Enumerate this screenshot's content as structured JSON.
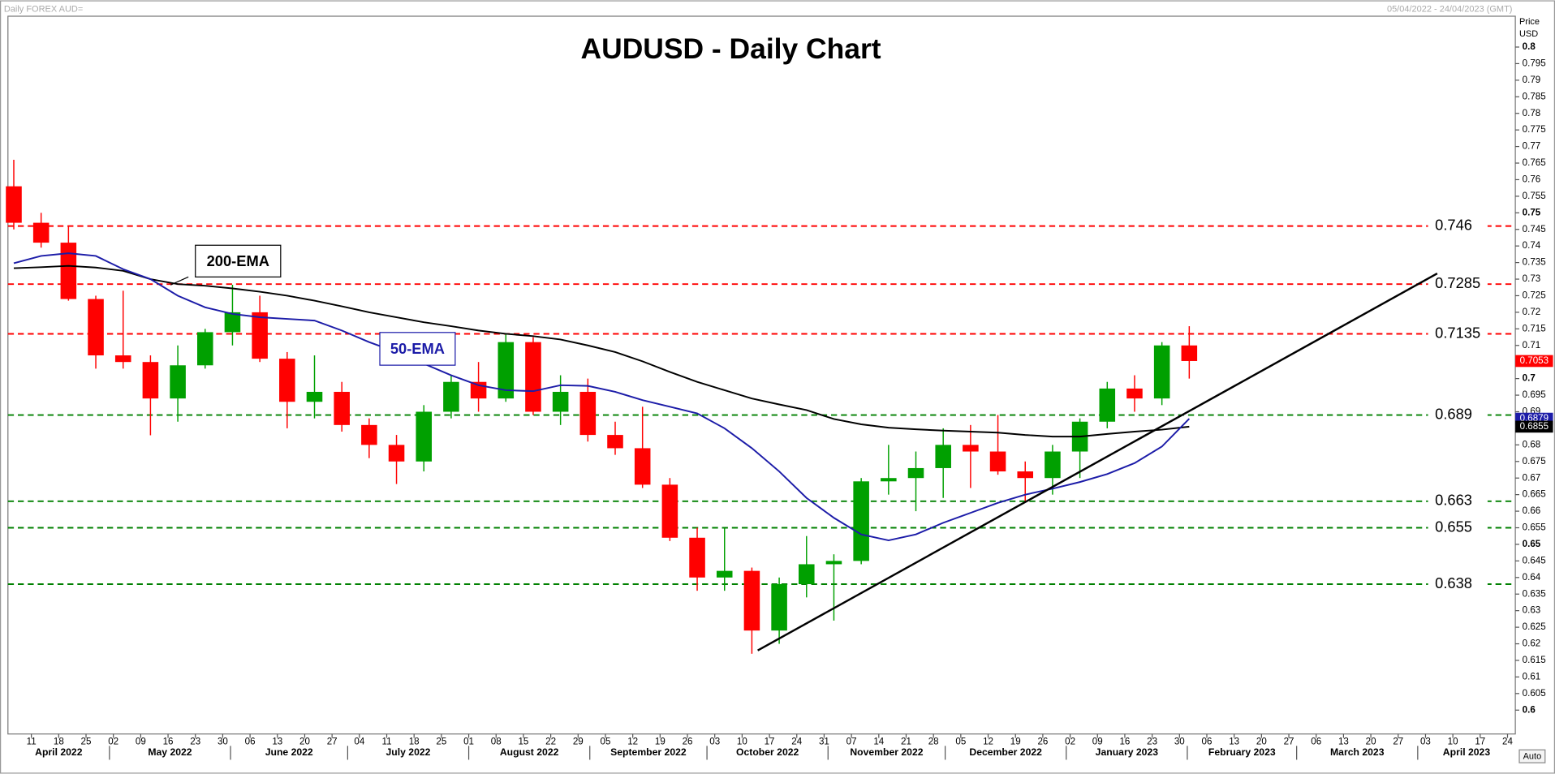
{
  "chart_data": {
    "type": "candlestick",
    "title": "AUDUSD - Daily Chart",
    "header_left": "Daily FOREX AUD=",
    "header_right": "05/04/2022 - 24/04/2023 (GMT)",
    "y_axis_label": [
      "Price",
      "USD"
    ],
    "button": "Auto",
    "up_color": "#00a000",
    "down_color": "#ff0000",
    "x": [
      "2022-04-04",
      "2022-04-11",
      "2022-04-18",
      "2022-04-25",
      "2022-05-02",
      "2022-05-09",
      "2022-05-16",
      "2022-05-23",
      "2022-05-30",
      "2022-06-06",
      "2022-06-13",
      "2022-06-20",
      "2022-06-27",
      "2022-07-04",
      "2022-07-11",
      "2022-07-18",
      "2022-07-25",
      "2022-08-01",
      "2022-08-08",
      "2022-08-15",
      "2022-08-22",
      "2022-08-29",
      "2022-09-05",
      "2022-09-12",
      "2022-09-19",
      "2022-09-26",
      "2022-10-03",
      "2022-10-10",
      "2022-10-17",
      "2022-10-24",
      "2022-10-31",
      "2022-11-07",
      "2022-11-14",
      "2022-11-21",
      "2022-11-28",
      "2022-12-05",
      "2022-12-12",
      "2022-12-19",
      "2022-12-26",
      "2023-01-02",
      "2023-01-09",
      "2023-01-16",
      "2023-01-23",
      "2023-01-30"
    ],
    "open": [
      0.758,
      0.747,
      0.741,
      0.724,
      0.707,
      0.705,
      0.694,
      0.704,
      0.714,
      0.72,
      0.706,
      0.693,
      0.696,
      0.686,
      0.68,
      0.675,
      0.69,
      0.699,
      0.694,
      0.711,
      0.69,
      0.696,
      0.683,
      0.679,
      0.668,
      0.652,
      0.64,
      0.642,
      0.624,
      0.638,
      0.644,
      0.645,
      0.669,
      0.67,
      0.673,
      0.68,
      0.678,
      0.672,
      0.67,
      0.678,
      0.687,
      0.697,
      0.694,
      0.71
    ],
    "high": [
      0.766,
      0.75,
      0.746,
      0.725,
      0.7265,
      0.707,
      0.71,
      0.715,
      0.7283,
      0.725,
      0.708,
      0.707,
      0.699,
      0.688,
      0.683,
      0.692,
      0.701,
      0.705,
      0.7137,
      0.7125,
      0.701,
      0.7,
      0.687,
      0.6915,
      0.67,
      0.655,
      0.6548,
      0.643,
      0.64,
      0.6525,
      0.647,
      0.67,
      0.68,
      0.678,
      0.685,
      0.686,
      0.689,
      0.675,
      0.68,
      0.688,
      0.699,
      0.701,
      0.711,
      0.7158
    ],
    "low": [
      0.745,
      0.7395,
      0.7235,
      0.703,
      0.703,
      0.6829,
      0.687,
      0.703,
      0.71,
      0.705,
      0.685,
      0.688,
      0.684,
      0.676,
      0.6682,
      0.672,
      0.688,
      0.69,
      0.693,
      0.689,
      0.686,
      0.681,
      0.677,
      0.667,
      0.651,
      0.636,
      0.636,
      0.617,
      0.62,
      0.634,
      0.627,
      0.644,
      0.665,
      0.66,
      0.664,
      0.667,
      0.671,
      0.663,
      0.665,
      0.67,
      0.685,
      0.69,
      0.692,
      0.7
    ],
    "close": [
      0.747,
      0.741,
      0.724,
      0.707,
      0.705,
      0.694,
      0.704,
      0.714,
      0.72,
      0.706,
      0.693,
      0.696,
      0.686,
      0.68,
      0.675,
      0.69,
      0.699,
      0.694,
      0.711,
      0.69,
      0.696,
      0.683,
      0.679,
      0.668,
      0.652,
      0.64,
      0.642,
      0.624,
      0.638,
      0.644,
      0.645,
      0.669,
      0.67,
      0.673,
      0.68,
      0.678,
      0.672,
      0.67,
      0.678,
      0.687,
      0.697,
      0.694,
      0.71,
      0.7053
    ],
    "series": [
      {
        "name": "200-EMA",
        "color": "#000000",
        "values": [
          0.7333,
          0.7336,
          0.734,
          0.7335,
          0.7325,
          0.73,
          0.7285,
          0.728,
          0.7272,
          0.7262,
          0.725,
          0.7235,
          0.7218,
          0.72,
          0.7185,
          0.717,
          0.7158,
          0.7145,
          0.7135,
          0.7128,
          0.7118,
          0.71,
          0.708,
          0.7052,
          0.702,
          0.699,
          0.6965,
          0.694,
          0.6922,
          0.6905,
          0.6878,
          0.6862,
          0.6852,
          0.6847,
          0.6843,
          0.684,
          0.6837,
          0.683,
          0.6825,
          0.6825,
          0.6833,
          0.684,
          0.6846,
          0.6855
        ]
      },
      {
        "name": "50-EMA",
        "color": "#1c1ca8",
        "values": [
          0.7348,
          0.737,
          0.7378,
          0.737,
          0.733,
          0.73,
          0.725,
          0.7215,
          0.7195,
          0.7185,
          0.718,
          0.7175,
          0.7145,
          0.711,
          0.708,
          0.7045,
          0.701,
          0.698,
          0.6965,
          0.6962,
          0.698,
          0.6978,
          0.696,
          0.6935,
          0.6915,
          0.6895,
          0.685,
          0.679,
          0.672,
          0.664,
          0.658,
          0.653,
          0.6512,
          0.653,
          0.6565,
          0.6595,
          0.6625,
          0.665,
          0.6668,
          0.6688,
          0.6712,
          0.6745,
          0.6795,
          0.6879
        ]
      }
    ],
    "resistance": {
      "color": "#ff0000",
      "values": [
        0.746,
        0.7285,
        0.7135
      ]
    },
    "support": {
      "color": "#008000",
      "values": [
        0.689,
        0.663,
        0.655,
        0.638
      ]
    },
    "trendline": {
      "color": "#000000",
      "x": [
        "2022-10-14",
        "2023-04-06"
      ],
      "values": [
        0.618,
        0.7317
      ]
    },
    "xlim": [
      "2022-04-05",
      "2023-04-26"
    ],
    "ylim": [
      0.5928,
      0.8093
    ],
    "yticks": [
      0.6,
      0.605,
      0.61,
      0.615,
      0.62,
      0.625,
      0.63,
      0.635,
      0.64,
      0.645,
      0.65,
      0.655,
      0.66,
      0.665,
      0.67,
      0.675,
      0.68,
      0.685,
      0.69,
      0.695,
      0.7,
      0.705,
      0.71,
      0.715,
      0.72,
      0.725,
      0.73,
      0.735,
      0.74,
      0.745,
      0.75,
      0.755,
      0.76,
      0.765,
      0.77,
      0.775,
      0.78,
      0.785,
      0.79,
      0.795,
      0.8
    ],
    "xticks": [
      {
        "value": "2022-04-11",
        "label": "11"
      },
      {
        "value": "2022-04-18",
        "label": "18"
      },
      {
        "value": "2022-04-25",
        "label": "25"
      },
      {
        "value": "2022-05-02",
        "label": "02"
      },
      {
        "value": "2022-05-09",
        "label": "09"
      },
      {
        "value": "2022-05-16",
        "label": "16"
      },
      {
        "value": "2022-05-23",
        "label": "23"
      },
      {
        "value": "2022-05-30",
        "label": "30"
      },
      {
        "value": "2022-06-06",
        "label": "06"
      },
      {
        "value": "2022-06-13",
        "label": "13"
      },
      {
        "value": "2022-06-20",
        "label": "20"
      },
      {
        "value": "2022-06-27",
        "label": "27"
      },
      {
        "value": "2022-07-04",
        "label": "04"
      },
      {
        "value": "2022-07-11",
        "label": "11"
      },
      {
        "value": "2022-07-18",
        "label": "18"
      },
      {
        "value": "2022-07-25",
        "label": "25"
      },
      {
        "value": "2022-08-01",
        "label": "01"
      },
      {
        "value": "2022-08-08",
        "label": "08"
      },
      {
        "value": "2022-08-15",
        "label": "15"
      },
      {
        "value": "2022-08-22",
        "label": "22"
      },
      {
        "value": "2022-08-29",
        "label": "29"
      },
      {
        "value": "2022-09-05",
        "label": "05"
      },
      {
        "value": "2022-09-12",
        "label": "12"
      },
      {
        "value": "2022-09-19",
        "label": "19"
      },
      {
        "value": "2022-09-26",
        "label": "26"
      },
      {
        "value": "2022-10-03",
        "label": "03"
      },
      {
        "value": "2022-10-10",
        "label": "10"
      },
      {
        "value": "2022-10-17",
        "label": "17"
      },
      {
        "value": "2022-10-24",
        "label": "24"
      },
      {
        "value": "2022-10-31",
        "label": "31"
      },
      {
        "value": "2022-11-07",
        "label": "07"
      },
      {
        "value": "2022-11-14",
        "label": "14"
      },
      {
        "value": "2022-11-21",
        "label": "21"
      },
      {
        "value": "2022-11-28",
        "label": "28"
      },
      {
        "value": "2022-12-05",
        "label": "05"
      },
      {
        "value": "2022-12-12",
        "label": "12"
      },
      {
        "value": "2022-12-19",
        "label": "19"
      },
      {
        "value": "2022-12-26",
        "label": "26"
      },
      {
        "value": "2023-01-02",
        "label": "02"
      },
      {
        "value": "2023-01-09",
        "label": "09"
      },
      {
        "value": "2023-01-16",
        "label": "16"
      },
      {
        "value": "2023-01-23",
        "label": "23"
      },
      {
        "value": "2023-01-30",
        "label": "30"
      },
      {
        "value": "2023-02-06",
        "label": "06"
      },
      {
        "value": "2023-02-13",
        "label": "13"
      },
      {
        "value": "2023-02-20",
        "label": "20"
      },
      {
        "value": "2023-02-27",
        "label": "27"
      },
      {
        "value": "2023-03-06",
        "label": "06"
      },
      {
        "value": "2023-03-13",
        "label": "13"
      },
      {
        "value": "2023-03-20",
        "label": "20"
      },
      {
        "value": "2023-03-27",
        "label": "27"
      },
      {
        "value": "2023-04-03",
        "label": "03"
      },
      {
        "value": "2023-04-10",
        "label": "10"
      },
      {
        "value": "2023-04-17",
        "label": "17"
      },
      {
        "value": "2023-04-24",
        "label": "24"
      }
    ],
    "month_ticks": [
      {
        "value": "2022-04",
        "label": "April 2022"
      },
      {
        "value": "2022-05",
        "label": "May 2022"
      },
      {
        "value": "2022-06",
        "label": "June 2022"
      },
      {
        "value": "2022-07",
        "label": "July 2022"
      },
      {
        "value": "2022-08",
        "label": "August 2022"
      },
      {
        "value": "2022-09",
        "label": "September 2022"
      },
      {
        "value": "2022-10",
        "label": "October 2022"
      },
      {
        "value": "2022-11",
        "label": "November 2022"
      },
      {
        "value": "2022-12",
        "label": "December 2022"
      },
      {
        "value": "2023-01",
        "label": "January 2023"
      },
      {
        "value": "2023-02",
        "label": "February 2023"
      },
      {
        "value": "2023-03",
        "label": "March 2023"
      },
      {
        "value": "2023-04",
        "label": "April 2023"
      }
    ]
  }
}
